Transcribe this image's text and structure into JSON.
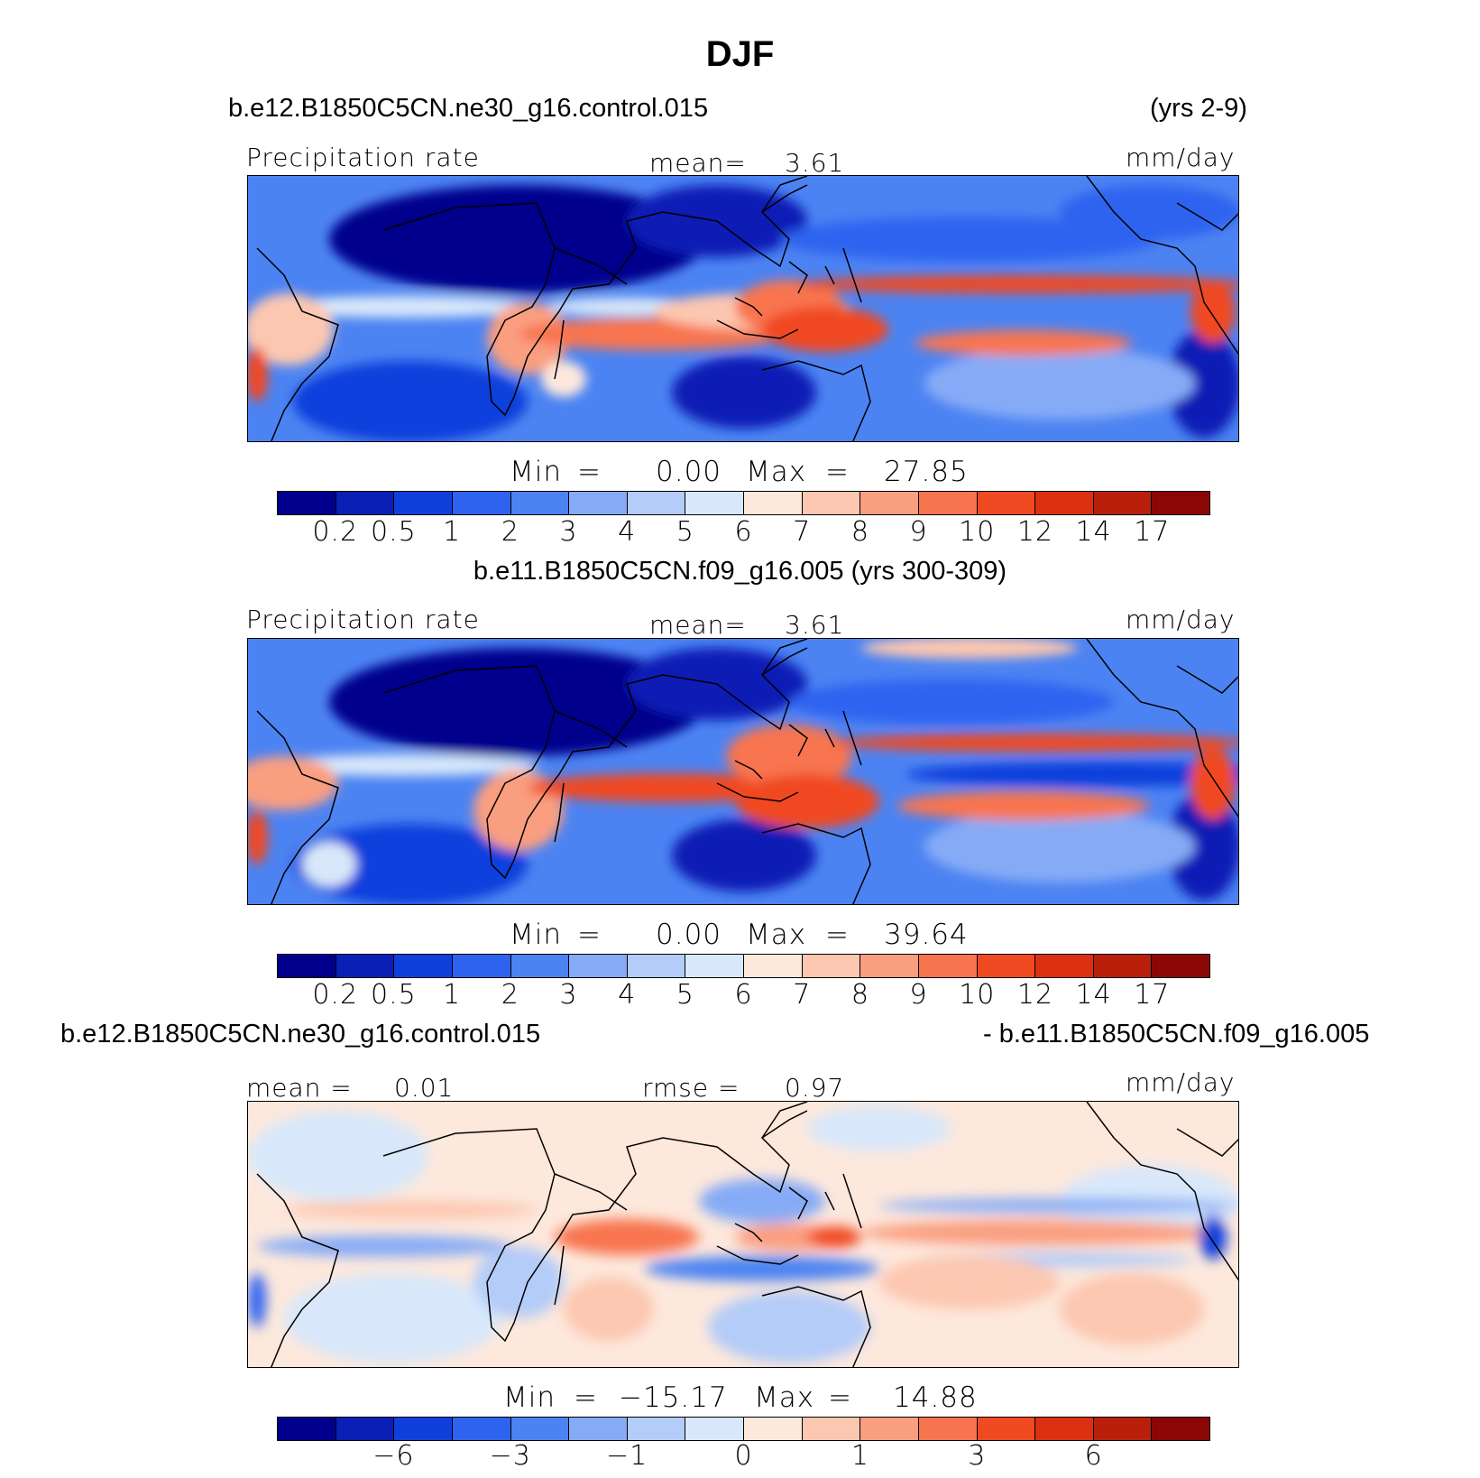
{
  "figure": {
    "title": "DJF",
    "legend_bins": [
      "#00008c",
      "#0a1fb5",
      "#1040dc",
      "#2e63f0",
      "#4c83f2",
      "#86abf6",
      "#b4ccf8",
      "#d8e8fa",
      "#fde8dc",
      "#fcc7b0",
      "#fa9e80",
      "#f8744f",
      "#f04a22",
      "#dc3010",
      "#b8200c",
      "#8c0606"
    ]
  },
  "panels": [
    {
      "case": "b.e12.B1850C5CN.ne30_g16.control.015",
      "years": "(yrs 2-9)",
      "variable": "Precipitation rate",
      "mean_label": "mean=",
      "mean_value": "3.61",
      "units": "mm/day",
      "min_label": "Min",
      "min_value": "0.00",
      "max_label": "Max",
      "max_value": "27.85",
      "ticks": [
        "0.2",
        "0.5",
        "1",
        "2",
        "3",
        "4",
        "5",
        "6",
        "7",
        "8",
        "9",
        "10",
        "12",
        "14",
        "17"
      ]
    },
    {
      "case": "b.e11.B1850C5CN.f09_g16.005 (yrs 300-309)",
      "variable": "Precipitation rate",
      "mean_label": "mean=",
      "mean_value": "3.61",
      "units": "mm/day",
      "min_label": "Min",
      "min_value": "0.00",
      "max_label": "Max",
      "max_value": "39.64",
      "ticks": [
        "0.2",
        "0.5",
        "1",
        "2",
        "3",
        "4",
        "5",
        "6",
        "7",
        "8",
        "9",
        "10",
        "12",
        "14",
        "17"
      ]
    },
    {
      "case_left": "b.e12.B1850C5CN.ne30_g16.control.015",
      "case_right": "- b.e11.B1850C5CN.f09_g16.005",
      "mean_label": "mean =",
      "mean_value": "0.01",
      "rmse_label": "rmse =",
      "rmse_value": "0.97",
      "units": "mm/day",
      "min_label": "Min",
      "min_value": "−15.17",
      "max_label": "Max",
      "max_value": "14.88",
      "ticks": [
        "−6",
        "−3",
        "−1",
        "0",
        "1",
        "3",
        "6"
      ]
    }
  ]
}
